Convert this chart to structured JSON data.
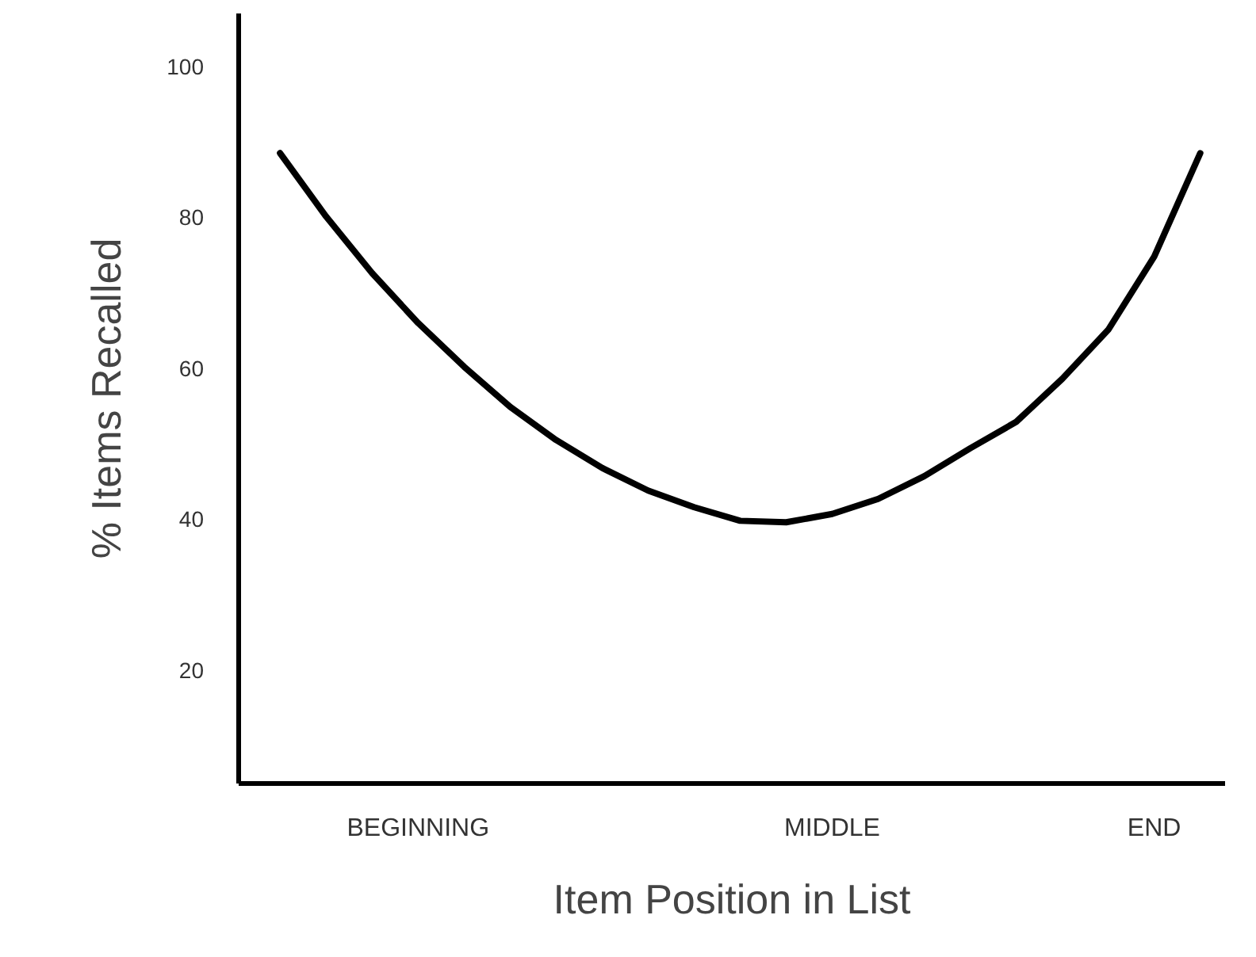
{
  "chart_data": {
    "type": "line",
    "xlabel": "Item Position in List",
    "ylabel": "% Items Recalled",
    "categories": [
      null,
      null,
      null,
      "BEGINNING",
      null,
      null,
      null,
      null,
      null,
      null,
      null,
      null,
      "MIDDLE",
      null,
      null,
      null,
      null,
      null,
      null,
      "END",
      null
    ],
    "series": [
      {
        "color": "#000000",
        "values": [
          88.5,
          80.1,
          72.6,
          66,
          60.2,
          54.9,
          50.5,
          46.8,
          43.8,
          41.6,
          39.8,
          39.6,
          40.7,
          42.7,
          45.7,
          49.4,
          52.9,
          58.6,
          65.1,
          74.8,
          88.5
        ]
      }
    ],
    "ylim": [
      5,
      107
    ],
    "yticks": [
      20,
      40,
      60,
      80,
      100
    ],
    "grid": false,
    "marker": "none",
    "line_style": "solid"
  }
}
